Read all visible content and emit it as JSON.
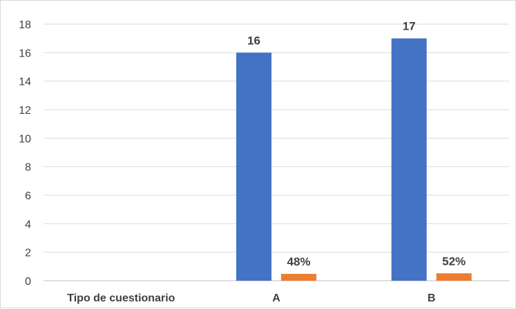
{
  "chart_data": {
    "type": "bar",
    "categories": [
      "Tipo de cuestionario",
      "A",
      "B"
    ],
    "series": [
      {
        "values": [
          null,
          16,
          17
        ],
        "data_labels": [
          "",
          "16",
          "17"
        ],
        "color": "#4472C4"
      },
      {
        "values": [
          null,
          0.48,
          0.52
        ],
        "data_labels": [
          "",
          "48%",
          "52%"
        ],
        "color": "#ED7D31"
      }
    ],
    "title": "",
    "xlabel": "",
    "ylabel": "",
    "ylim": [
      0,
      18
    ],
    "yticks": [
      "0",
      "2",
      "4",
      "6",
      "8",
      "10",
      "12",
      "14",
      "16",
      "18"
    ],
    "grid": true,
    "legend": "none"
  }
}
